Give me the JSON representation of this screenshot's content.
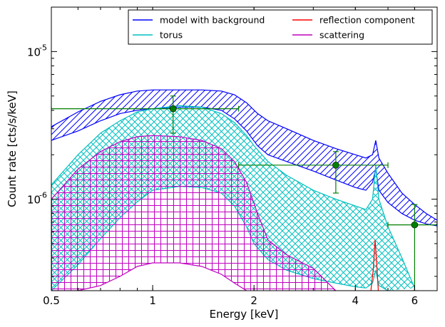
{
  "chart_data": {
    "type": "line",
    "xlabel": "Energy [keV]",
    "ylabel": "Count rate [cts/s/keV]",
    "x_scale": "log",
    "y_scale": "log",
    "xlim": [
      0.5,
      7.0
    ],
    "ylim": [
      2.4e-07,
      2e-05
    ],
    "x_ticks": [
      {
        "value": 0.5,
        "label": "0.5"
      },
      {
        "value": 1,
        "label": "1"
      },
      {
        "value": 2,
        "label": "2"
      },
      {
        "value": 4,
        "label": "4"
      },
      {
        "value": 6,
        "label": "6"
      }
    ],
    "y_ticks": [
      {
        "value": 1e-06,
        "mantissa": "10",
        "exponent": "-6"
      },
      {
        "value": 1e-05,
        "mantissa": "10",
        "exponent": "-5"
      }
    ],
    "legend": {
      "placement": "top-right",
      "columns": 2,
      "entries": [
        {
          "label": "model with background",
          "color": "#0000ff"
        },
        {
          "label": "reflection component",
          "color": "#ff0000"
        },
        {
          "label": "torus",
          "color": "#00bfbf"
        },
        {
          "label": "scattering",
          "color": "#bf00bf"
        }
      ]
    },
    "data_points": {
      "color": "#007f00",
      "points": [
        {
          "x": 1.15,
          "y": 4.1e-06,
          "xerr": [
            0.5,
            1.8
          ],
          "yerr": [
            2.8e-06,
            5e-06
          ]
        },
        {
          "x": 3.5,
          "y": 1.7e-06,
          "xerr": [
            1.8,
            5.0
          ],
          "yerr": [
            1.1e-06,
            2.1e-06
          ]
        },
        {
          "x": 6.0,
          "y": 6.7e-07,
          "xerr": [
            5.0,
            7.0
          ],
          "yerr": [
            2.4e-07,
            9.2e-07
          ]
        }
      ]
    },
    "bands": [
      {
        "name": "model with background",
        "color": "#0000ff",
        "hatch": "diagonal",
        "upper": [
          [
            0.5,
            3.1e-06
          ],
          [
            0.6,
            3.9e-06
          ],
          [
            0.7,
            4.6e-06
          ],
          [
            0.8,
            5.1e-06
          ],
          [
            0.9,
            5.4e-06
          ],
          [
            1.0,
            5.5e-06
          ],
          [
            1.2,
            5.5e-06
          ],
          [
            1.4,
            5.5e-06
          ],
          [
            1.6,
            5.4e-06
          ],
          [
            1.75,
            5.1e-06
          ],
          [
            1.9,
            4.5e-06
          ],
          [
            2.05,
            3.8e-06
          ],
          [
            2.2,
            3.4e-06
          ],
          [
            2.5,
            3e-06
          ],
          [
            3.0,
            2.5e-06
          ],
          [
            3.5,
            2.2e-06
          ],
          [
            4.0,
            2e-06
          ],
          [
            4.3,
            1.9e-06
          ],
          [
            4.5,
            2e-06
          ],
          [
            4.6,
            2.5e-06
          ],
          [
            4.7,
            1.9e-06
          ],
          [
            5.0,
            1.5e-06
          ],
          [
            5.5,
            1.1e-06
          ],
          [
            6.0,
            9.2e-07
          ],
          [
            6.5,
            8e-07
          ],
          [
            7.0,
            7.2e-07
          ]
        ],
        "lower": [
          [
            0.5,
            2.5e-06
          ],
          [
            0.6,
            2.9e-06
          ],
          [
            0.7,
            3.4e-06
          ],
          [
            0.8,
            3.8e-06
          ],
          [
            0.9,
            4e-06
          ],
          [
            1.0,
            4.1e-06
          ],
          [
            1.2,
            4.2e-06
          ],
          [
            1.4,
            4.2e-06
          ],
          [
            1.6,
            4e-06
          ],
          [
            1.75,
            3.5e-06
          ],
          [
            1.9,
            2.9e-06
          ],
          [
            2.05,
            2.3e-06
          ],
          [
            2.2,
            2e-06
          ],
          [
            2.5,
            1.8e-06
          ],
          [
            3.0,
            1.55e-06
          ],
          [
            3.5,
            1.35e-06
          ],
          [
            4.0,
            1.2e-06
          ],
          [
            4.3,
            1.15e-06
          ],
          [
            4.5,
            1.3e-06
          ],
          [
            4.6,
            1.6e-06
          ],
          [
            4.7,
            1.15e-06
          ],
          [
            5.0,
            9.5e-07
          ],
          [
            5.5,
            8e-07
          ],
          [
            6.0,
            7.2e-07
          ],
          [
            6.5,
            6.8e-07
          ],
          [
            7.0,
            6.6e-07
          ]
        ]
      },
      {
        "name": "torus",
        "color": "#00bfbf",
        "hatch": "cross",
        "upper": [
          [
            0.5,
            1.25e-06
          ],
          [
            0.6,
            2e-06
          ],
          [
            0.7,
            2.8e-06
          ],
          [
            0.8,
            3.4e-06
          ],
          [
            0.9,
            3.9e-06
          ],
          [
            1.0,
            4.1e-06
          ],
          [
            1.2,
            4.3e-06
          ],
          [
            1.4,
            4.2e-06
          ],
          [
            1.6,
            3.8e-06
          ],
          [
            1.75,
            3.3e-06
          ],
          [
            1.9,
            2.7e-06
          ],
          [
            2.0,
            2.3e-06
          ],
          [
            2.2,
            1.8e-06
          ],
          [
            2.5,
            1.45e-06
          ],
          [
            3.0,
            1.15e-06
          ],
          [
            3.5,
            1e-06
          ],
          [
            4.0,
            9e-07
          ],
          [
            4.3,
            8.5e-07
          ],
          [
            4.5,
            1e-06
          ],
          [
            4.6,
            1.7e-06
          ],
          [
            4.7,
            1e-06
          ],
          [
            5.0,
            6.5e-07
          ],
          [
            5.5,
            4e-07
          ],
          [
            6.0,
            2.5e-07
          ]
        ],
        "lower": [
          [
            0.5,
            2.4e-07
          ],
          [
            0.6,
            3.6e-07
          ],
          [
            0.7,
            5.4e-07
          ],
          [
            0.8,
            7.5e-07
          ],
          [
            0.9,
            9.6e-07
          ],
          [
            1.0,
            1.15e-06
          ],
          [
            1.2,
            1.22e-06
          ],
          [
            1.4,
            1.2e-06
          ],
          [
            1.6,
            1.1e-06
          ],
          [
            1.75,
            9e-07
          ],
          [
            1.9,
            6.5e-07
          ],
          [
            2.0,
            5e-07
          ],
          [
            2.2,
            3.9e-07
          ],
          [
            2.5,
            3.3e-07
          ],
          [
            3.0,
            2.9e-07
          ],
          [
            3.5,
            2.7e-07
          ],
          [
            4.0,
            2.55e-07
          ],
          [
            4.3,
            2.5e-07
          ],
          [
            4.5,
            2.7e-07
          ],
          [
            4.6,
            3.3e-07
          ],
          [
            4.7,
            2.6e-07
          ],
          [
            5.0,
            2.4e-07
          ]
        ]
      },
      {
        "name": "scattering",
        "color": "#bf00bf",
        "hatch": "grid",
        "upper": [
          [
            0.5,
            1e-06
          ],
          [
            0.6,
            1.6e-06
          ],
          [
            0.7,
            2.1e-06
          ],
          [
            0.8,
            2.45e-06
          ],
          [
            0.9,
            2.65e-06
          ],
          [
            1.0,
            2.7e-06
          ],
          [
            1.2,
            2.65e-06
          ],
          [
            1.4,
            2.5e-06
          ],
          [
            1.6,
            2.2e-06
          ],
          [
            1.75,
            1.8e-06
          ],
          [
            1.9,
            1.3e-06
          ],
          [
            2.05,
            8e-07
          ],
          [
            2.2,
            5.3e-07
          ],
          [
            2.5,
            4.2e-07
          ],
          [
            3.0,
            3.4e-07
          ],
          [
            3.5,
            2.4e-07
          ]
        ],
        "lower": [
          [
            0.5,
            2.4e-07
          ],
          [
            0.6,
            2.4e-07
          ],
          [
            0.7,
            2.6e-07
          ],
          [
            0.8,
            3e-07
          ],
          [
            0.9,
            3.5e-07
          ],
          [
            1.0,
            3.7e-07
          ],
          [
            1.2,
            3.7e-07
          ],
          [
            1.4,
            3.5e-07
          ],
          [
            1.6,
            3.1e-07
          ],
          [
            1.75,
            2.7e-07
          ],
          [
            1.9,
            2.4e-07
          ]
        ]
      },
      {
        "name": "reflection component",
        "color": "#ff0000",
        "hatch": "none",
        "upper": [
          [
            4.45,
            2.4e-07
          ],
          [
            4.52,
            3.3e-07
          ],
          [
            4.58,
            5.3e-07
          ],
          [
            4.63,
            3.6e-07
          ],
          [
            4.68,
            2.4e-07
          ]
        ],
        "lower": [
          [
            4.45,
            2.4e-07
          ],
          [
            4.68,
            2.4e-07
          ]
        ]
      }
    ]
  }
}
